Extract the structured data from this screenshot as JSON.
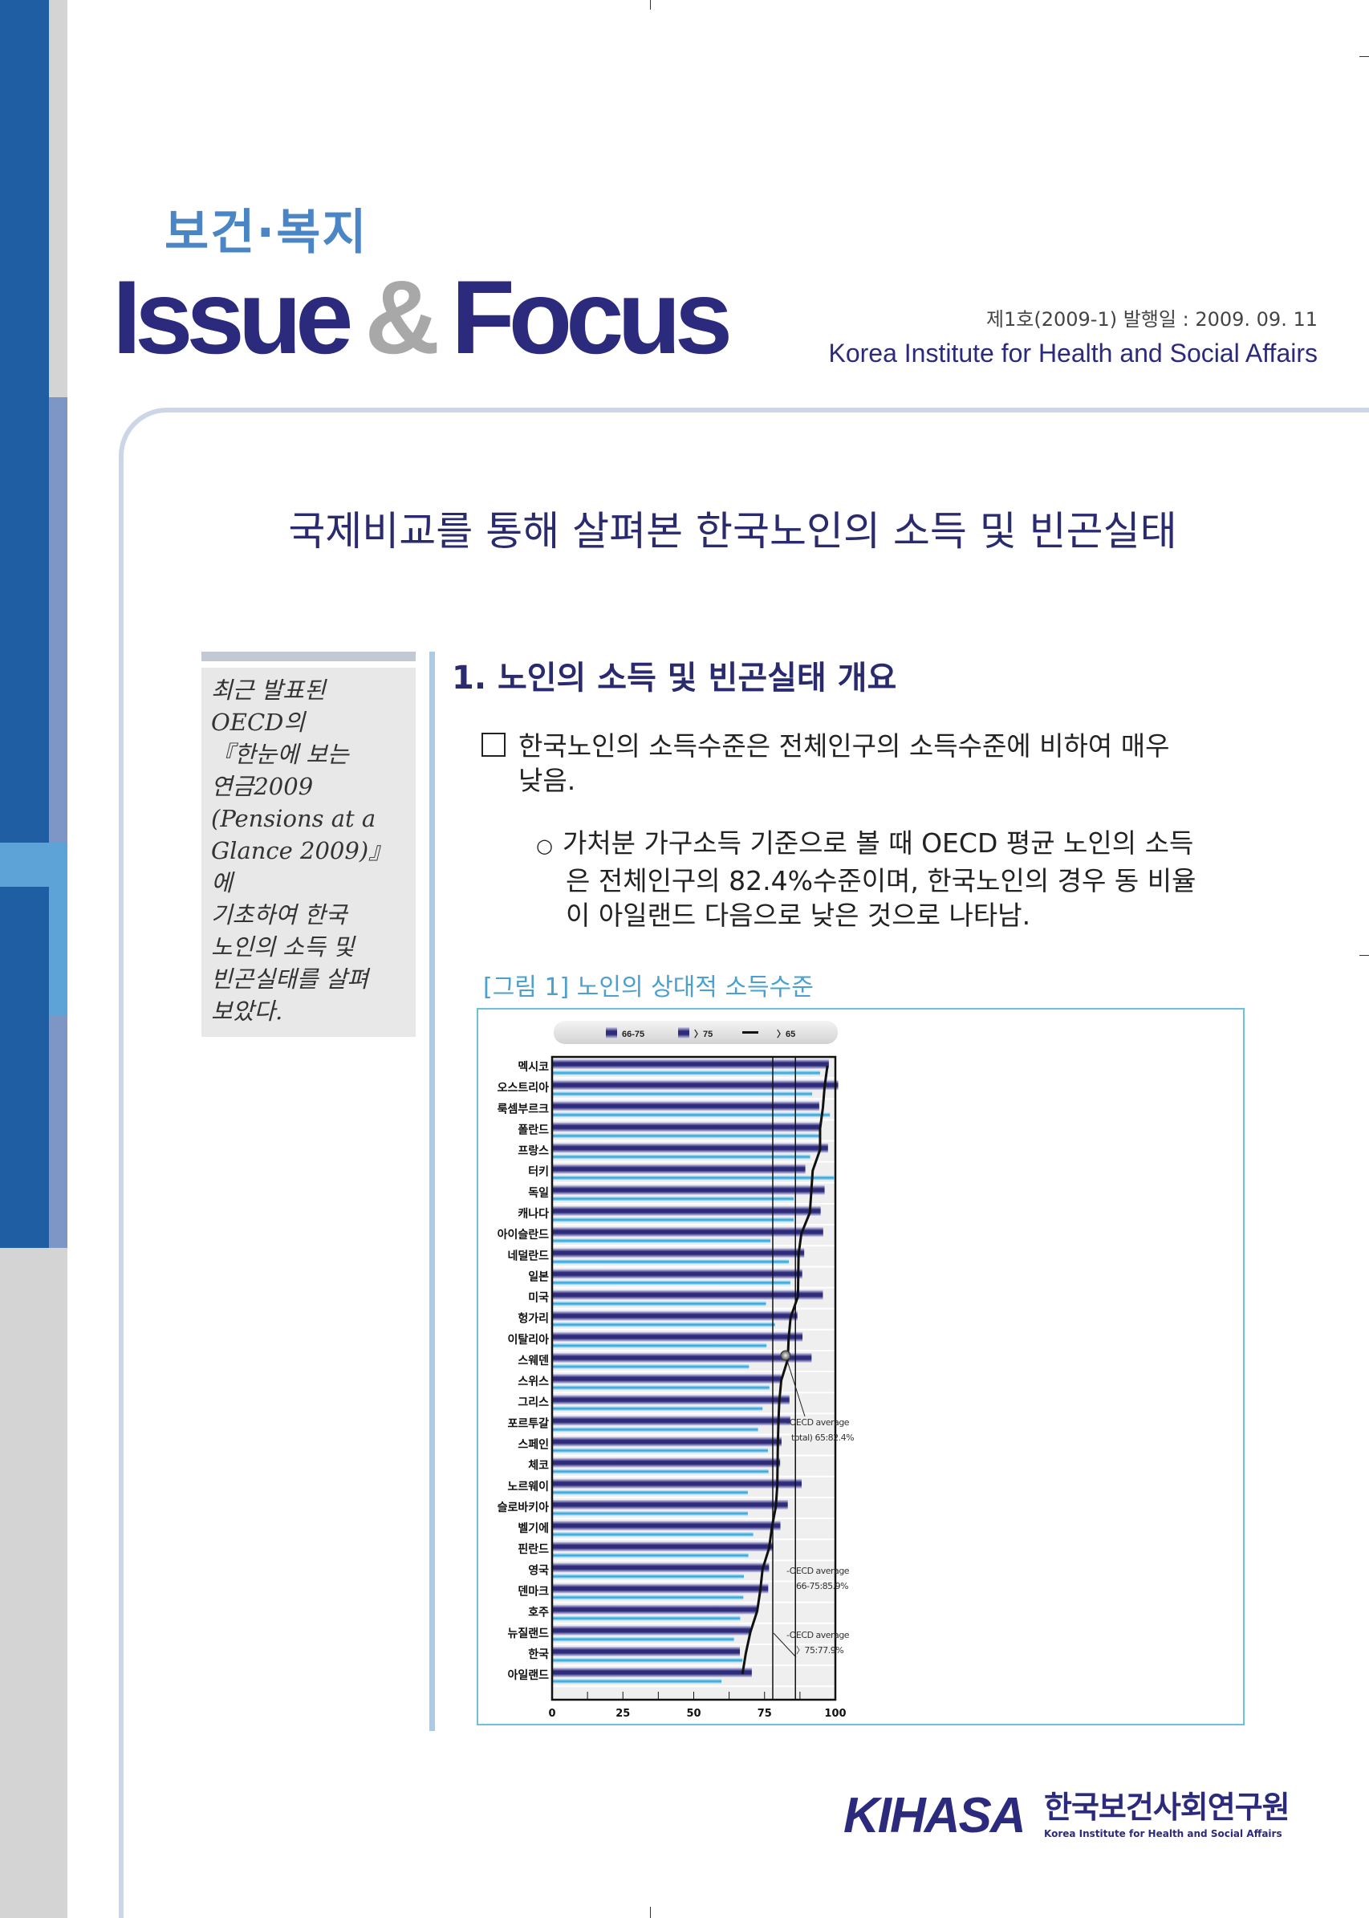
{
  "header": {
    "category": "보건·복지",
    "brand_issue": "Issue",
    "brand_amp": "&",
    "brand_focus": "Focus",
    "issue_info": "제1호(2009-1) 발행일 : 2009. 09. 11",
    "institute_en": "Korea Institute for Health and Social Affairs"
  },
  "title": "국제비교를 통해 살펴본 한국노인의 소득 및 빈곤실태",
  "sidebar": {
    "lines": [
      "최근 발표된",
      "OECD의",
      "『한눈에 보는",
      "연금2009",
      "(Pensions at a",
      "Glance 2009)』에",
      "기초하여 한국",
      "노인의 소득 및",
      "빈곤실태를 살펴",
      "보았다."
    ]
  },
  "section": {
    "heading": "1. 노인의 소득 및 빈곤실태 개요",
    "bullet_lines": [
      "한국노인의 소득수준은 전체인구의 소득수준에 비하여 매우",
      "낮음."
    ],
    "sub_marker": "○",
    "sub_lines": [
      "가처분 가구소득 기준으로 볼 때 OECD 평균 노인의 소득",
      "은 전체인구의 82.4%수준이며, 한국노인의 경우 동 비율",
      "이 아일랜드 다음으로 낮은 것으로 나타남."
    ],
    "figure_caption": "[그림 1] 노인의 상대적 소득수준"
  },
  "chart_data": {
    "type": "bar",
    "orientation": "horizontal",
    "categories": [
      "멕시코",
      "오스트리아",
      "룩셈부르크",
      "폴란드",
      "프랑스",
      "터키",
      "독일",
      "캐나다",
      "아이슬란드",
      "네덜란드",
      "일본",
      "미국",
      "헝가리",
      "이탈리아",
      "스웨덴",
      "스위스",
      "그리스",
      "포르투갈",
      "스페인",
      "체코",
      "노르웨이",
      "슬로바키아",
      "벨기에",
      "핀란드",
      "영국",
      "덴마크",
      "호주",
      "뉴질랜드",
      "한국",
      "아일랜드"
    ],
    "series": [
      {
        "name": "66-75",
        "type": "bar",
        "color": "#2d2b7a",
        "values": [
          97.7,
          101,
          94.3,
          94.6,
          97.4,
          89.4,
          96.2,
          94.8,
          95.7,
          89.0,
          88.3,
          95.6,
          86.6,
          88.4,
          91.6,
          80.9,
          83.8,
          84.1,
          81.0,
          80.5,
          88.1,
          83.2,
          80.6,
          78.1,
          76.6,
          76.3,
          72.4,
          70.0,
          66.3,
          70.5
        ]
      },
      {
        "name": "〉75",
        "type": "bar",
        "color": "#2aa0d8",
        "values": [
          94.6,
          91.8,
          98.1,
          94.6,
          91.1,
          99.5,
          85.3,
          85.3,
          77.1,
          83.6,
          84.1,
          75.5,
          78.7,
          75.7,
          69.5,
          76.7,
          74.3,
          72.7,
          76.2,
          76.4,
          69.1,
          69.1,
          71.0,
          69.3,
          67.7,
          67.5,
          66.4,
          64.2,
          67.2,
          59.8
        ]
      },
      {
        "name": "〉65",
        "type": "line",
        "color": "#111111",
        "values": [
          97.2,
          96.2,
          95.6,
          94.6,
          94.6,
          92.0,
          91.5,
          91.0,
          88.0,
          87.0,
          86.9,
          86.8,
          84.2,
          83.5,
          83.2,
          80.9,
          80.2,
          79.9,
          79.7,
          79.6,
          79.5,
          79.0,
          77.6,
          76.6,
          74.3,
          73.5,
          72.4,
          70.0,
          68.4,
          67.2
        ]
      }
    ],
    "xlim": [
      0,
      100
    ],
    "xticks": [
      "0",
      "25",
      "50",
      "75",
      "100"
    ],
    "reference_lines": [
      77.9,
      85.9
    ],
    "marker_value": 82.4,
    "annotations": [
      {
        "line1": "-OECD average",
        "line2": "total) 65:82.4%"
      },
      {
        "line1": "-OECD average",
        "line2": "66-75:85.9%"
      },
      {
        "line1": "-OECD average",
        "line2": "〉75:77.9%"
      }
    ],
    "legend_position": "top",
    "grid": false
  },
  "footer": {
    "logo_text": "KIHASA",
    "logo_kr": "한국보건사회연구원",
    "logo_en": "Korea Institute for Health and Social Affairs"
  }
}
